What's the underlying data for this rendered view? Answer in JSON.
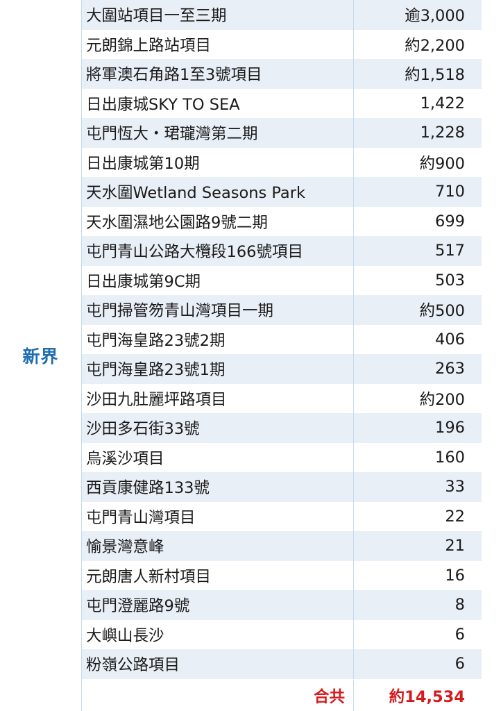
{
  "region": "新界",
  "rows": [
    {
      "name": "大圍站項目一至三期",
      "units": "逾3,000"
    },
    {
      "name": "元朗錦上路站項目",
      "units": "約2,200"
    },
    {
      "name": "將軍澳石角路1至3號項目",
      "units": "約1,518"
    },
    {
      "name": "日出康城SKY TO SEA",
      "units": "1,422"
    },
    {
      "name": "屯門恆大・珺瓏灣第二期",
      "units": "1,228"
    },
    {
      "name": "日出康城第10期",
      "units": "約900"
    },
    {
      "name": "天水圍Wetland Seasons Park",
      "units": "710"
    },
    {
      "name": "天水圍濕地公園路9號二期",
      "units": "699"
    },
    {
      "name": "屯門青山公路大欖段166號項目",
      "units": "517"
    },
    {
      "name": "日出康城第9C期",
      "units": "503"
    },
    {
      "name": "屯門掃管笏青山灣項目一期",
      "units": "約500"
    },
    {
      "name": "屯門海皇路23號2期",
      "units": "406"
    },
    {
      "name": "屯門海皇路23號1期",
      "units": "263"
    },
    {
      "name": "沙田九肚麗坪路項目",
      "units": "約200"
    },
    {
      "name": "沙田多石街33號",
      "units": "196"
    },
    {
      "name": "烏溪沙項目",
      "units": "160"
    },
    {
      "name": "西貢康健路133號",
      "units": "33"
    },
    {
      "name": "屯門青山灣項目",
      "units": "22"
    },
    {
      "name": "愉景灣意峰",
      "units": "21"
    },
    {
      "name": "元朗唐人新村項目",
      "units": "16"
    },
    {
      "name": "屯門澄麗路9號",
      "units": "8"
    },
    {
      "name": "大嶼山長沙",
      "units": "6"
    },
    {
      "name": "粉嶺公路項目",
      "units": "6"
    }
  ],
  "total": {
    "label": "合共",
    "value": "約14,534"
  },
  "colors": {
    "region_text": "#1f6db0",
    "total_text": "#d7191c",
    "stripe": "#e9eff6",
    "border": "#c9d9ea"
  }
}
